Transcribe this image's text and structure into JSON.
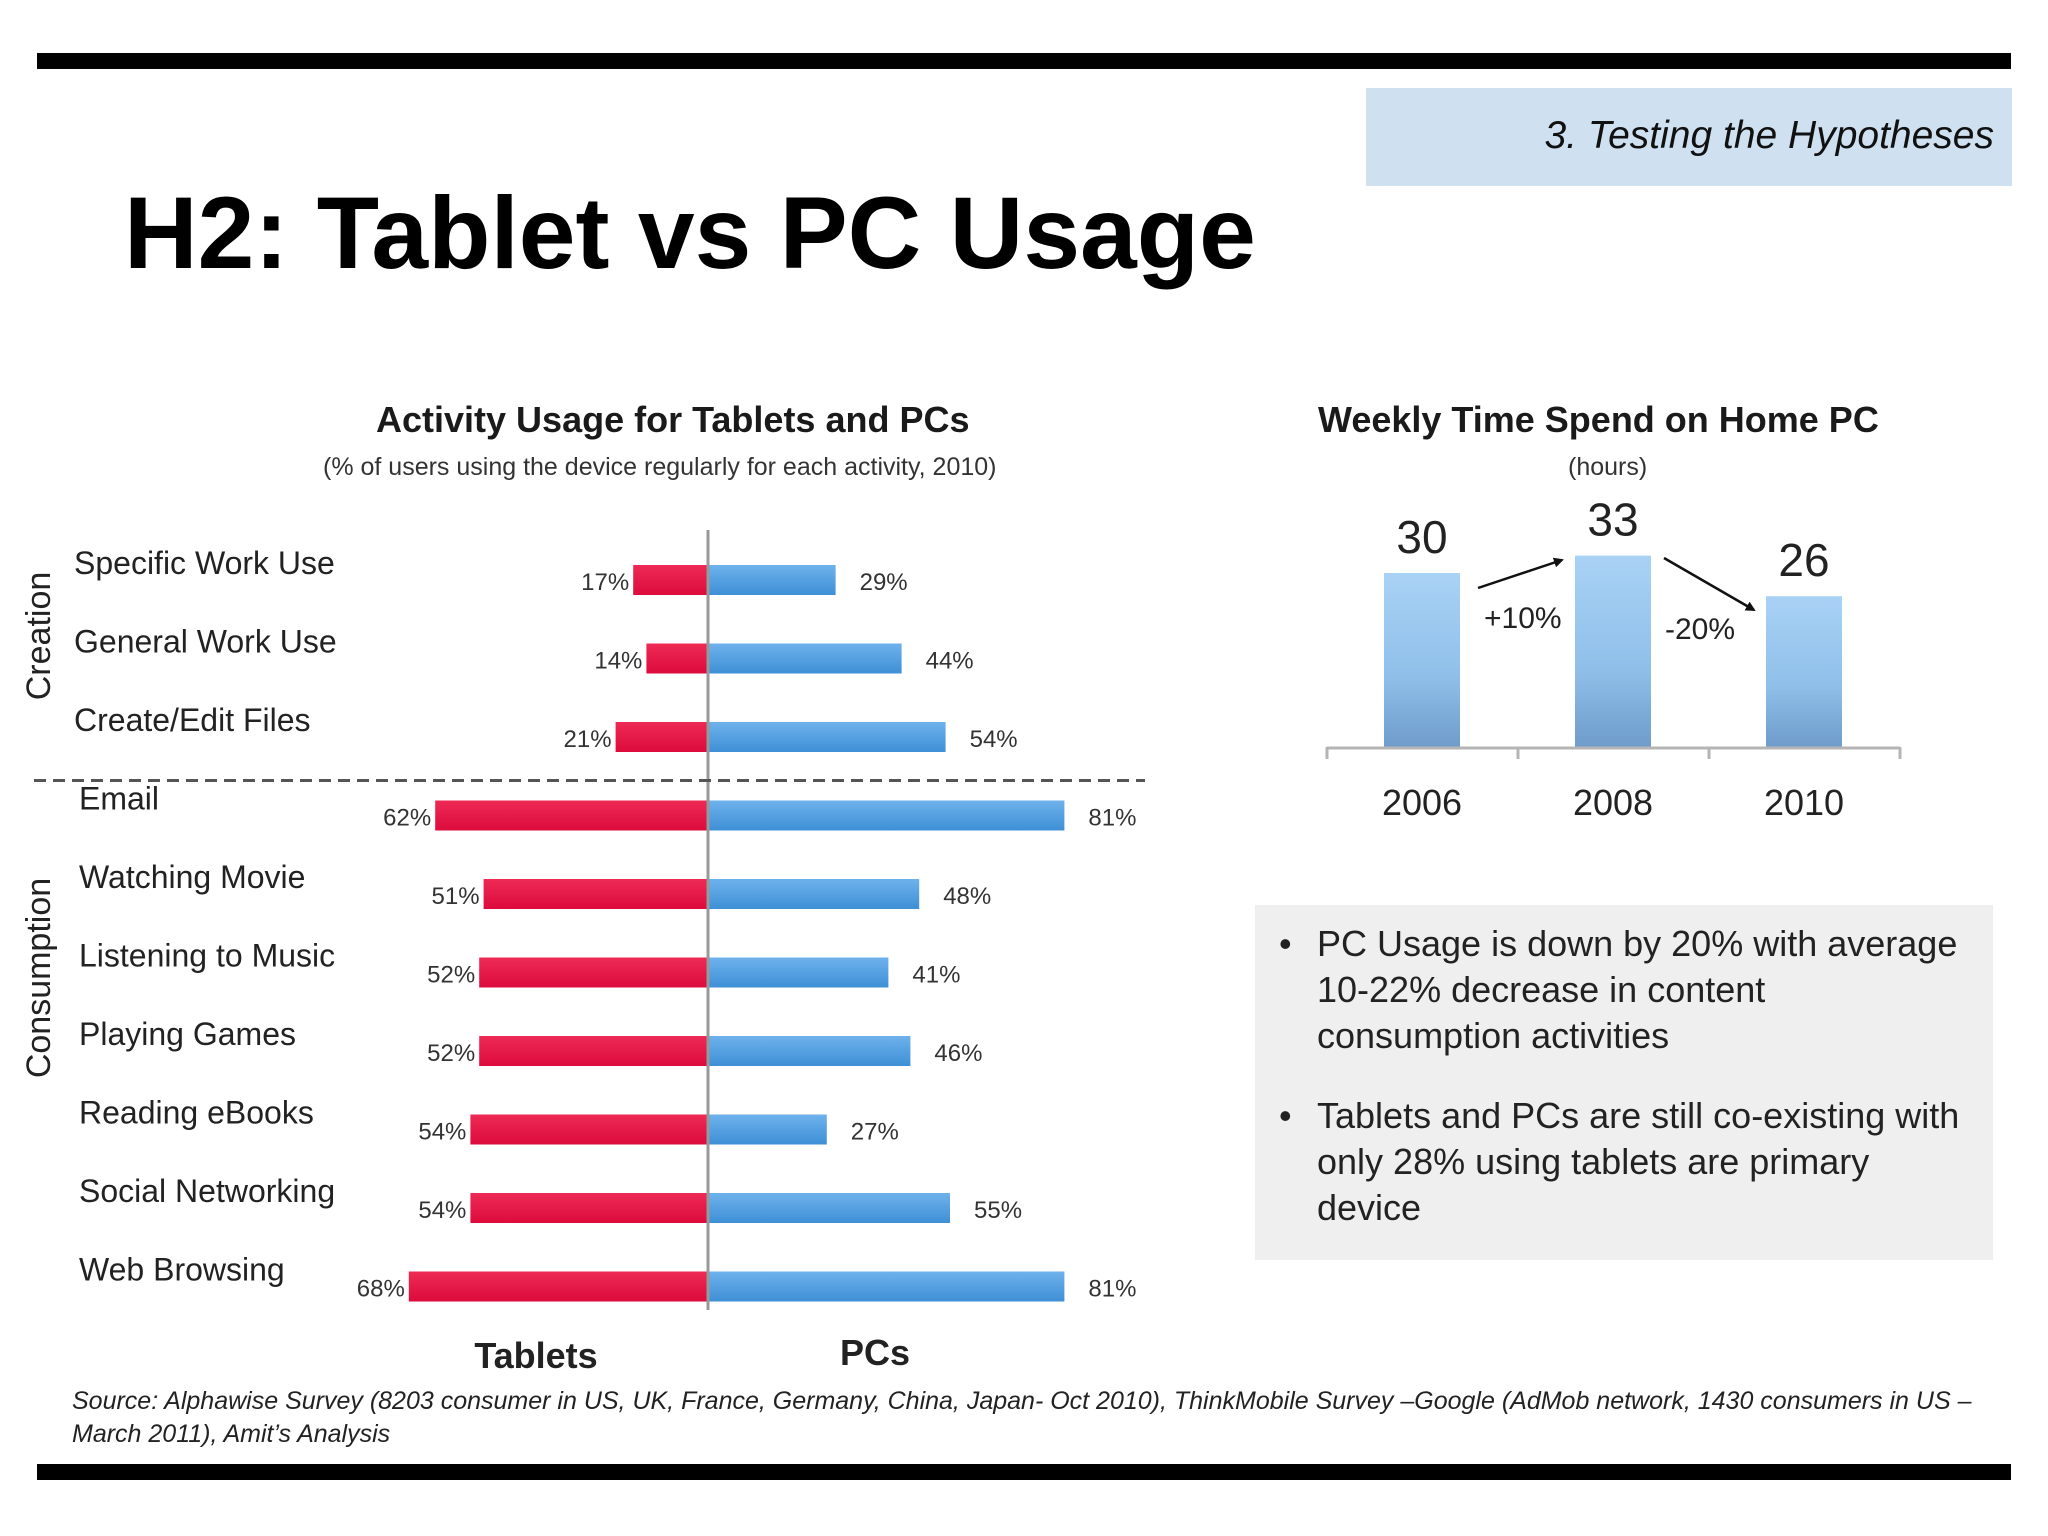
{
  "header": {
    "section": "3. Testing  the Hypotheses",
    "title": "H2: Tablet vs PC Usage"
  },
  "chart_data": [
    {
      "type": "bar",
      "orientation": "horizontal-diverging",
      "title": "Activity Usage for Tablets and PCs",
      "subtitle": "(% of users using the device regularly for each activity, 2010)",
      "groups": [
        {
          "name": "Creation",
          "categories": [
            "Specific Work Use",
            "General Work Use",
            "Create/Edit Files"
          ]
        },
        {
          "name": "Consumption",
          "categories": [
            "Email",
            "Watching Movie",
            "Listening to Music",
            "Playing Games",
            "Reading eBooks",
            "Social Networking",
            "Web Browsing"
          ]
        }
      ],
      "categories": [
        "Specific Work Use",
        "General Work Use",
        "Create/Edit Files",
        "Email",
        "Watching Movie",
        "Listening to Music",
        "Playing Games",
        "Reading eBooks",
        "Social Networking",
        "Web Browsing"
      ],
      "series": [
        {
          "name": "Tablets",
          "color": "#dc0b3c",
          "values": [
            17,
            14,
            21,
            62,
            51,
            52,
            52,
            54,
            54,
            68
          ]
        },
        {
          "name": "PCs",
          "color": "#3e8fd6",
          "values": [
            29,
            44,
            54,
            81,
            48,
            41,
            46,
            27,
            55,
            81
          ]
        }
      ],
      "unit": "%",
      "xlim": [
        0,
        100
      ],
      "grid": false
    },
    {
      "type": "bar",
      "title": "Weekly Time Spend on Home PC",
      "subtitle": "(hours)",
      "categories": [
        "2006",
        "2008",
        "2010"
      ],
      "values": [
        30,
        33,
        26
      ],
      "ylim": [
        0,
        40
      ],
      "bar_color": "#8fbfe9",
      "annotations": [
        "+10%",
        "-20%"
      ],
      "grid": false
    }
  ],
  "notes": {
    "bullets": [
      "PC Usage is down by 20% with average 10-22% decrease in content consumption activities",
      "Tablets and PCs are still co-existing with only 28% using tablets are primary device"
    ]
  },
  "source": "Source: Alphawise Survey (8203 consumer in US, UK, France, Germany, China, Japan- Oct 2010),  ThinkMobile Survey –Google (AdMob network, 1430 consumers in US – March 2011), Amit’s Analysis"
}
